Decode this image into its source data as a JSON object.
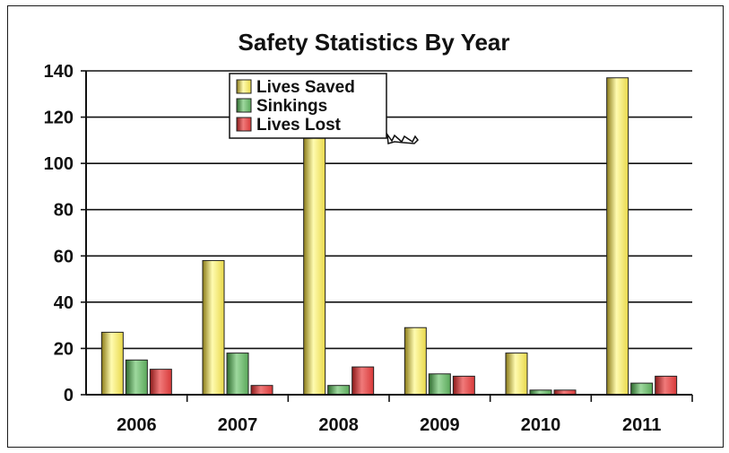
{
  "chart_data": {
    "type": "bar",
    "title": "Safety Statistics By Year",
    "xlabel": "",
    "ylabel": "",
    "categories": [
      "2006",
      "2007",
      "2008",
      "2009",
      "2010",
      "2011"
    ],
    "ylim": [
      0,
      140
    ],
    "yticks": [
      0,
      20,
      40,
      60,
      80,
      100,
      120,
      140
    ],
    "grid": true,
    "legend_position": "top-center",
    "series": [
      {
        "name": "Lives Saved",
        "values": [
          27,
          58,
          130,
          29,
          18,
          137
        ],
        "color": "#e8d84a",
        "colorDark": "#8a7a18",
        "colorLight": "#fffbb0"
      },
      {
        "name": "Sinkings",
        "values": [
          15,
          18,
          4,
          9,
          2,
          5
        ],
        "color": "#5aa85a",
        "colorDark": "#2d6a2d",
        "colorLight": "#9ed89e"
      },
      {
        "name": "Lives Lost",
        "values": [
          11,
          4,
          12,
          8,
          2,
          8
        ],
        "color": "#d83a3a",
        "colorDark": "#8a1a1a",
        "colorLight": "#f07a7a"
      }
    ]
  }
}
